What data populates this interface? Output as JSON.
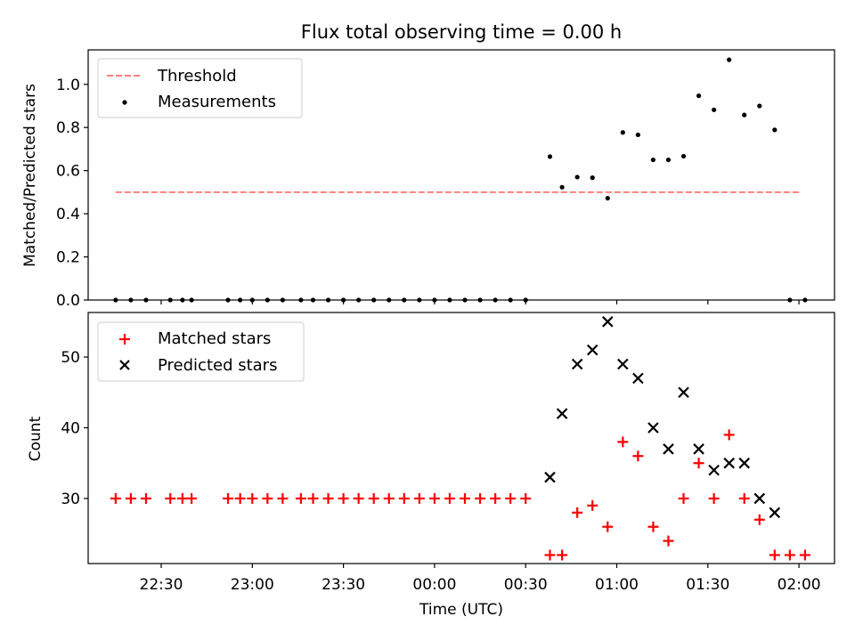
{
  "title": "Flux total observing time = 0.00 h",
  "chart_data": [
    {
      "type": "scatter",
      "ylabel": "Matched/Predicted stars",
      "xlabel": "",
      "ylim": [
        0,
        1.16
      ],
      "yticks": [
        "0.0",
        "0.2",
        "0.4",
        "0.6",
        "0.8",
        "1.0"
      ],
      "ytick_values": [
        0,
        0.2,
        0.4,
        0.6,
        0.8,
        1.0
      ],
      "legend_position": "upper-left",
      "threshold": {
        "name": "Threshold",
        "value": 0.5,
        "x_start": "22:15",
        "x_end": "02:00",
        "color": "#ff7f7f"
      },
      "series": [
        {
          "name": "Measurements",
          "color": "#000000",
          "marker": "dot",
          "points": [
            [
              "22:15",
              0
            ],
            [
              "22:20",
              0
            ],
            [
              "22:25",
              0
            ],
            [
              "22:33",
              0
            ],
            [
              "22:37",
              0
            ],
            [
              "22:40",
              0
            ],
            [
              "22:52",
              0
            ],
            [
              "22:56",
              0
            ],
            [
              "23:00",
              0
            ],
            [
              "23:05",
              0
            ],
            [
              "23:10",
              0
            ],
            [
              "23:16",
              0
            ],
            [
              "23:20",
              0
            ],
            [
              "23:25",
              0
            ],
            [
              "23:30",
              0
            ],
            [
              "23:35",
              0
            ],
            [
              "23:40",
              0
            ],
            [
              "23:45",
              0
            ],
            [
              "23:50",
              0
            ],
            [
              "23:55",
              0
            ],
            [
              "00:00",
              0
            ],
            [
              "00:05",
              0
            ],
            [
              "00:10",
              0
            ],
            [
              "00:15",
              0
            ],
            [
              "00:20",
              0
            ],
            [
              "00:25",
              0
            ],
            [
              "00:30",
              0
            ],
            [
              "00:38",
              0.665
            ],
            [
              "00:42",
              0.523
            ],
            [
              "00:47",
              0.57
            ],
            [
              "00:52",
              0.567
            ],
            [
              "00:57",
              0.472
            ],
            [
              "01:02",
              0.777
            ],
            [
              "01:07",
              0.766
            ],
            [
              "01:12",
              0.65
            ],
            [
              "01:17",
              0.65
            ],
            [
              "01:22",
              0.667
            ],
            [
              "01:27",
              0.947
            ],
            [
              "01:32",
              0.882
            ],
            [
              "01:37",
              1.114
            ],
            [
              "01:42",
              0.858
            ],
            [
              "01:47",
              0.9
            ],
            [
              "01:52",
              0.789
            ],
            [
              "01:57",
              0
            ],
            [
              "02:02",
              0
            ]
          ]
        }
      ]
    },
    {
      "type": "scatter",
      "ylabel": "Count",
      "xlabel": "Time (UTC)",
      "ylim": [
        20.8,
        56.3
      ],
      "yticks": [
        "30",
        "40",
        "50"
      ],
      "ytick_values": [
        30,
        40,
        50
      ],
      "xticks": [
        "22:30",
        "23:00",
        "23:30",
        "00:00",
        "00:30",
        "01:00",
        "01:30",
        "02:00"
      ],
      "legend_position": "upper-left",
      "series": [
        {
          "name": "Matched stars",
          "color": "#ff0000",
          "marker": "plus",
          "points": [
            [
              "22:15",
              30
            ],
            [
              "22:20",
              30
            ],
            [
              "22:25",
              30
            ],
            [
              "22:33",
              30
            ],
            [
              "22:37",
              30
            ],
            [
              "22:40",
              30
            ],
            [
              "22:52",
              30
            ],
            [
              "22:56",
              30
            ],
            [
              "23:00",
              30
            ],
            [
              "23:05",
              30
            ],
            [
              "23:10",
              30
            ],
            [
              "23:16",
              30
            ],
            [
              "23:20",
              30
            ],
            [
              "23:25",
              30
            ],
            [
              "23:30",
              30
            ],
            [
              "23:35",
              30
            ],
            [
              "23:40",
              30
            ],
            [
              "23:45",
              30
            ],
            [
              "23:50",
              30
            ],
            [
              "23:55",
              30
            ],
            [
              "00:00",
              30
            ],
            [
              "00:05",
              30
            ],
            [
              "00:10",
              30
            ],
            [
              "00:15",
              30
            ],
            [
              "00:20",
              30
            ],
            [
              "00:25",
              30
            ],
            [
              "00:30",
              30
            ],
            [
              "00:38",
              22
            ],
            [
              "00:42",
              22
            ],
            [
              "00:47",
              28
            ],
            [
              "00:52",
              29
            ],
            [
              "00:57",
              26
            ],
            [
              "01:02",
              38
            ],
            [
              "01:07",
              36
            ],
            [
              "01:12",
              26
            ],
            [
              "01:17",
              24
            ],
            [
              "01:22",
              30
            ],
            [
              "01:27",
              35
            ],
            [
              "01:32",
              30
            ],
            [
              "01:37",
              39
            ],
            [
              "01:42",
              30
            ],
            [
              "01:47",
              27
            ],
            [
              "01:52",
              22
            ],
            [
              "01:57",
              22
            ],
            [
              "02:02",
              22
            ]
          ]
        },
        {
          "name": "Predicted stars",
          "color": "#000000",
          "marker": "x",
          "points": [
            [
              "00:38",
              33
            ],
            [
              "00:42",
              42
            ],
            [
              "00:47",
              49
            ],
            [
              "00:52",
              51
            ],
            [
              "00:57",
              55
            ],
            [
              "01:02",
              49
            ],
            [
              "01:07",
              47
            ],
            [
              "01:12",
              40
            ],
            [
              "01:17",
              37
            ],
            [
              "01:22",
              45
            ],
            [
              "01:27",
              37
            ],
            [
              "01:32",
              34
            ],
            [
              "01:37",
              35
            ],
            [
              "01:42",
              35
            ],
            [
              "01:47",
              30
            ],
            [
              "01:52",
              28
            ]
          ]
        }
      ]
    }
  ]
}
